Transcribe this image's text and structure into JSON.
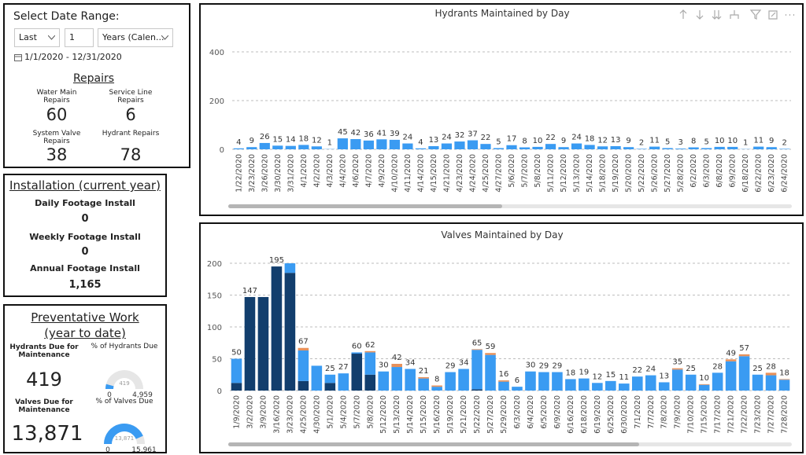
{
  "date_range": {
    "title": "Select Date Range:",
    "period": "Last",
    "count": "1",
    "unit": "Years (Calen...",
    "dates": "1/1/2020 - 12/31/2020"
  },
  "repairs": {
    "title": "Repairs",
    "items": [
      {
        "label": "Water Main Repairs",
        "value": "60"
      },
      {
        "label": "Service Line Repairs",
        "value": "6"
      },
      {
        "label": "System Valve Repairs",
        "value": "38"
      },
      {
        "label": "Hydrant Repairs",
        "value": "78"
      }
    ]
  },
  "installation": {
    "title": "Installation (current year)",
    "items": [
      {
        "label": "Daily Footage Install",
        "value": "0"
      },
      {
        "label": "Weekly Footage Install",
        "value": "0"
      },
      {
        "label": "Annual Footage Install",
        "value": "1,165"
      }
    ]
  },
  "preventative": {
    "title": [
      "Preventative Work",
      "(year to date)"
    ],
    "items": [
      {
        "label": "Hydrants Due for Maintenance",
        "value": "419",
        "gauge_title": "% of Hydrants Due",
        "gauge": {
          "value": 419,
          "value_label": "419",
          "min": 0,
          "max": 4959,
          "max_label": "4,959"
        }
      },
      {
        "label": "Valves Due for Maintenance",
        "value": "13,871",
        "gauge_title": "% of Valves Due",
        "gauge": {
          "value": 13871,
          "value_label": "13,871",
          "min": 0,
          "max": 15961,
          "max_label": "15,961"
        }
      }
    ]
  },
  "chart_data": [
    {
      "type": "bar",
      "title": "Hydrants Maintained by Day",
      "categories": [
        "1/22/2020",
        "3/23/2020",
        "3/26/2020",
        "3/30/2020",
        "3/31/2020",
        "4/1/2020",
        "4/2/2020",
        "4/3/2020",
        "4/4/2020",
        "4/6/2020",
        "4/7/2020",
        "4/9/2020",
        "4/10/2020",
        "4/11/2020",
        "4/14/2020",
        "4/15/2020",
        "4/21/2020",
        "4/23/2020",
        "4/24/2020",
        "4/25/2020",
        "4/27/2020",
        "5/6/2020",
        "5/7/2020",
        "5/8/2020",
        "5/11/2020",
        "5/12/2020",
        "5/13/2020",
        "5/14/2020",
        "5/18/2020",
        "5/19/2020",
        "5/20/2020",
        "5/22/2020",
        "5/26/2020",
        "5/27/2020",
        "5/28/2020",
        "6/2/2020",
        "6/3/2020",
        "6/8/2020",
        "6/9/2020",
        "6/18/2020",
        "6/22/2020",
        "6/23/2020",
        "6/24/2020"
      ],
      "values": [
        4,
        9,
        26,
        15,
        14,
        18,
        12,
        1,
        45,
        42,
        36,
        41,
        39,
        24,
        4,
        13,
        24,
        32,
        37,
        22,
        5,
        17,
        8,
        10,
        22,
        9,
        24,
        18,
        12,
        13,
        9,
        2,
        11,
        5,
        3,
        8,
        5,
        10,
        10,
        1,
        11,
        9,
        2
      ],
      "color": "#3a9bf2",
      "ylim": [
        0,
        500
      ],
      "yticks": [
        0,
        200,
        400
      ],
      "grid": true
    },
    {
      "type": "stacked_bar",
      "title": "Valves Maintained by Day",
      "categories": [
        "1/9/2020",
        "3/2/2020",
        "3/9/2020",
        "3/16/2020",
        "3/23/2020",
        "4/25/2020",
        "4/30/2020",
        "5/1/2020",
        "5/4/2020",
        "5/7/2020",
        "5/8/2020",
        "5/12/2020",
        "5/13/2020",
        "5/14/2020",
        "5/15/2020",
        "5/16/2020",
        "5/19/2020",
        "5/21/2020",
        "5/22/2020",
        "5/27/2020",
        "5/29/2020",
        "6/3/2020",
        "6/4/2020",
        "6/5/2020",
        "6/9/2020",
        "6/16/2020",
        "6/18/2020",
        "6/19/2020",
        "6/25/2020",
        "6/30/2020",
        "7/1/2020",
        "7/7/2020",
        "7/8/2020",
        "7/9/2020",
        "7/10/2020",
        "7/15/2020",
        "7/17/2020",
        "7/21/2020",
        "7/22/2020",
        "7/23/2020",
        "7/27/2020",
        "7/28/2020"
      ],
      "series": [
        {
          "color": "#123e6d",
          "values": [
            12,
            147,
            147,
            195,
            185,
            15,
            0,
            12,
            0,
            58,
            25,
            0,
            0,
            0,
            0,
            0,
            0,
            0,
            2,
            0,
            0,
            0,
            0,
            0,
            0,
            0,
            0,
            0,
            0,
            0,
            0,
            0,
            0,
            0,
            0,
            0,
            0,
            0,
            0,
            0,
            0,
            0
          ]
        },
        {
          "color": "#3a9bf2",
          "values": [
            38,
            0,
            0,
            0,
            15,
            48,
            39,
            13,
            27,
            2,
            35,
            30,
            37,
            34,
            19,
            6,
            29,
            34,
            62,
            56,
            14,
            6,
            30,
            29,
            29,
            18,
            19,
            12,
            15,
            11,
            22,
            24,
            13,
            33,
            25,
            9,
            28,
            46,
            54,
            25,
            24,
            17
          ]
        },
        {
          "color": "#e8915a",
          "values": [
            0,
            0,
            0,
            0,
            0,
            4,
            0,
            0,
            0,
            0,
            2,
            0,
            5,
            0,
            2,
            2,
            0,
            0,
            1,
            3,
            2,
            0,
            0,
            0,
            0,
            0,
            0,
            0,
            0,
            0,
            0,
            0,
            0,
            2,
            0,
            1,
            0,
            3,
            3,
            0,
            4,
            1
          ]
        }
      ],
      "totals": [
        50,
        147,
        null,
        195,
        null,
        67,
        null,
        25,
        27,
        60,
        62,
        30,
        42,
        34,
        21,
        8,
        29,
        34,
        65,
        59,
        16,
        6,
        30,
        29,
        29,
        18,
        19,
        12,
        15,
        11,
        22,
        24,
        13,
        35,
        25,
        10,
        28,
        49,
        57,
        25,
        28,
        18
      ],
      "ylim": [
        0,
        205
      ],
      "yticks": [
        0,
        50,
        100,
        150,
        200
      ],
      "grid": true
    }
  ]
}
